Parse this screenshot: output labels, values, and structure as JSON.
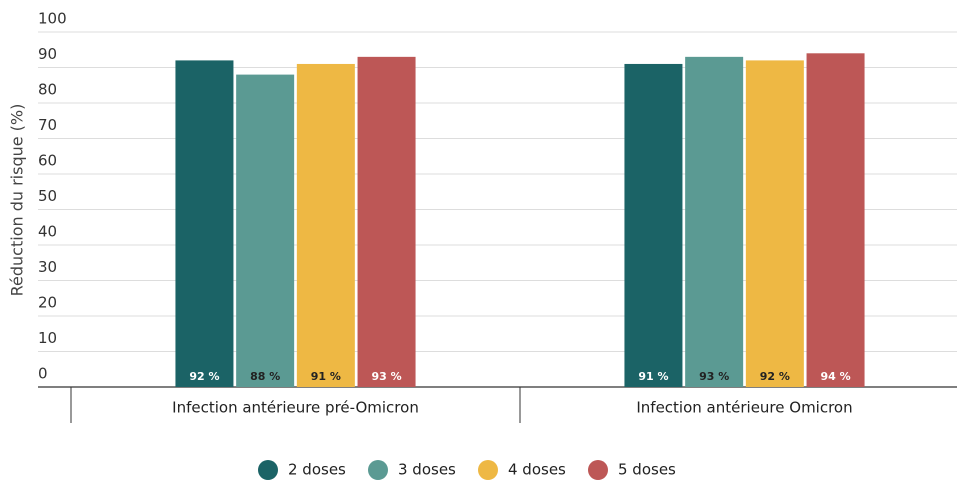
{
  "chart_data": {
    "type": "bar",
    "y_label": "Réduction du risque (%)",
    "categories": [
      "Infection antérieure pré-Omicron",
      "Infection antérieure Omicron"
    ],
    "series": [
      {
        "name": "2 doses",
        "color": "#1b6366",
        "values": [
          92,
          91
        ],
        "value_labels": [
          "92 %",
          "91 %"
        ]
      },
      {
        "name": "3 doses",
        "color": "#5b9a93",
        "values": [
          88,
          93
        ],
        "value_labels": [
          "88 %",
          "93 %"
        ]
      },
      {
        "name": "4 doses",
        "color": "#eeb844",
        "values": [
          91,
          92
        ],
        "value_labels": [
          "91 %",
          "92 %"
        ]
      },
      {
        "name": "5 doses",
        "color": "#bd5756",
        "values": [
          93,
          94
        ],
        "value_labels": [
          "93 %",
          "94 %"
        ]
      }
    ],
    "ylim": [
      0,
      100
    ],
    "yticks": [
      0,
      10,
      20,
      30,
      40,
      50,
      60,
      70,
      80,
      90,
      100
    ],
    "grid": true
  }
}
